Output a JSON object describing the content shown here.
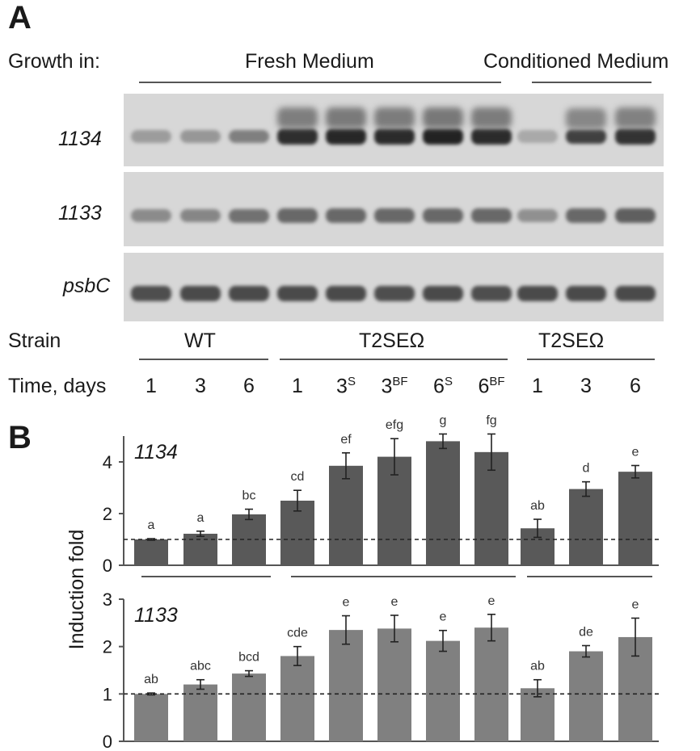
{
  "panel_a": {
    "letter": "A",
    "growth_label": "Growth in:",
    "medium_fresh": "Fresh Medium",
    "medium_conditioned": "Conditioned Medium",
    "genes": [
      "1134",
      "1133",
      "psbC"
    ],
    "strain_label": "Strain",
    "strains": [
      "WT",
      "T2SEΩ",
      "T2SEΩ"
    ],
    "time_label": "Time, days",
    "lanes": [
      {
        "base": "1",
        "sup": ""
      },
      {
        "base": "3",
        "sup": ""
      },
      {
        "base": "6",
        "sup": ""
      },
      {
        "base": "1",
        "sup": ""
      },
      {
        "base": "3",
        "sup": "S"
      },
      {
        "base": "3",
        "sup": "BF"
      },
      {
        "base": "6",
        "sup": "S"
      },
      {
        "base": "6",
        "sup": "BF"
      },
      {
        "base": "1",
        "sup": ""
      },
      {
        "base": "3",
        "sup": ""
      },
      {
        "base": "6",
        "sup": ""
      }
    ],
    "band_intensity": {
      "1134": [
        0.25,
        0.28,
        0.42,
        0.88,
        0.92,
        0.9,
        0.95,
        0.9,
        0.18,
        0.78,
        0.85
      ],
      "1133": [
        0.35,
        0.38,
        0.5,
        0.55,
        0.55,
        0.55,
        0.55,
        0.55,
        0.32,
        0.55,
        0.6
      ],
      "psbC": [
        0.7,
        0.72,
        0.72,
        0.72,
        0.72,
        0.7,
        0.72,
        0.7,
        0.72,
        0.72,
        0.72
      ]
    }
  },
  "panel_b": {
    "letter": "B"
  },
  "chart_data": [
    {
      "type": "bar",
      "title": "1134",
      "ylabel": "Induction fold",
      "ylim": [
        0,
        5
      ],
      "yticks": [
        0,
        2,
        4
      ],
      "reference_line": 1,
      "color": "#595959",
      "values": [
        1.0,
        1.22,
        1.97,
        2.5,
        3.85,
        4.2,
        4.8,
        4.38,
        1.43,
        2.95,
        3.62
      ],
      "errors": [
        0.03,
        0.1,
        0.2,
        0.4,
        0.5,
        0.7,
        0.28,
        0.7,
        0.35,
        0.28,
        0.24
      ],
      "letters": [
        "a",
        "a",
        "bc",
        "cd",
        "ef",
        "efg",
        "g",
        "fg",
        "ab",
        "d",
        "e"
      ]
    },
    {
      "type": "bar",
      "title": "1133",
      "ylabel": "Induction fold",
      "ylim": [
        0,
        3
      ],
      "yticks": [
        0,
        1,
        2,
        3
      ],
      "reference_line": 1,
      "color": "#808080",
      "values": [
        1.0,
        1.2,
        1.43,
        1.8,
        2.35,
        2.38,
        2.12,
        2.4,
        1.12,
        1.9,
        2.2
      ],
      "errors": [
        0.02,
        0.1,
        0.06,
        0.2,
        0.3,
        0.28,
        0.22,
        0.28,
        0.18,
        0.12,
        0.4
      ],
      "letters": [
        "ab",
        "abc",
        "bcd",
        "cde",
        "e",
        "e",
        "e",
        "e",
        "ab",
        "de",
        "e"
      ]
    }
  ]
}
